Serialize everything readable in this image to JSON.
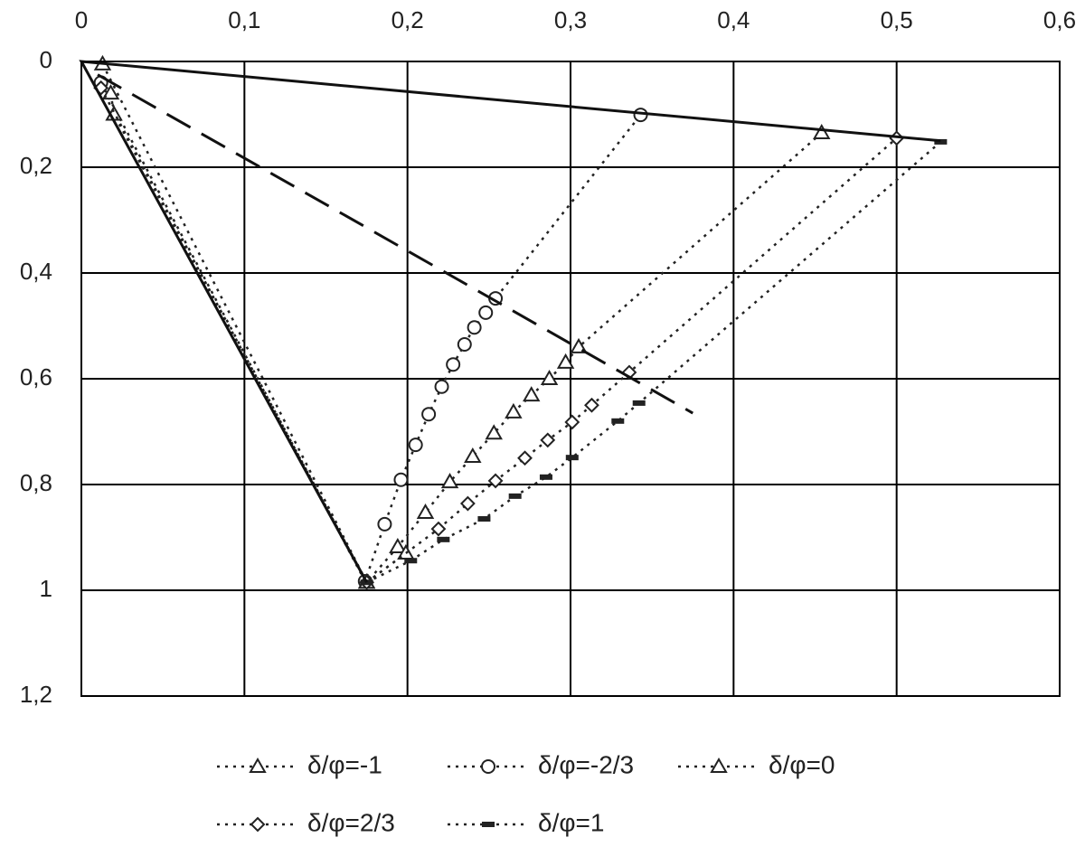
{
  "chart_data": {
    "type": "scatter",
    "xlim": [
      0,
      0.6
    ],
    "ylim": [
      0,
      1.2
    ],
    "y_inverted": true,
    "x_axis_position": "top",
    "grid": true,
    "legend": "bottom",
    "xticks": [
      0,
      {
        "value": 0.1,
        "label": "0,1"
      },
      {
        "value": 0.2,
        "label": "0,2"
      },
      {
        "value": 0.3,
        "label": "0,3"
      },
      {
        "value": 0.4,
        "label": "0,4"
      },
      {
        "value": 0.5,
        "label": "0,5"
      },
      {
        "value": 0.6,
        "label": "0,6"
      }
    ],
    "yticks": [
      0,
      {
        "value": 0.2,
        "label": "0,2"
      },
      {
        "value": 0.4,
        "label": "0,4"
      },
      {
        "value": 0.6,
        "label": "0,6"
      },
      {
        "value": 0.8,
        "label": "0,8"
      },
      1,
      {
        "value": 1.2,
        "label": "1,2"
      }
    ],
    "series": [
      {
        "name": "δ/φ=-1",
        "color": "#222222",
        "marker": "triangle",
        "line": "dotted",
        "x": [
          0.013,
          0.175,
          0.194,
          0.211,
          0.226,
          0.24,
          0.253,
          0.265,
          0.276,
          0.287,
          0.297,
          0.305,
          0.454
        ],
        "values": [
          0.005,
          0.985,
          0.918,
          0.853,
          0.795,
          0.747,
          0.703,
          0.663,
          0.631,
          0.6,
          0.569,
          0.54,
          0.135
        ]
      },
      {
        "name": "δ/φ=-2/3",
        "color": "#222222",
        "marker": "circle",
        "line": "dotted",
        "x": [
          0.012,
          0.174,
          0.186,
          0.196,
          0.205,
          0.213,
          0.221,
          0.228,
          0.235,
          0.241,
          0.248,
          0.254,
          0.343
        ],
        "values": [
          0.04,
          0.983,
          0.875,
          0.791,
          0.725,
          0.667,
          0.615,
          0.573,
          0.535,
          0.503,
          0.475,
          0.448,
          0.101
        ]
      },
      {
        "name": "δ/φ=0",
        "color": "#222222",
        "marker": "triangle",
        "line": "dotted",
        "x": [
          0.018,
          0.02,
          0.175,
          0.199
        ],
        "values": [
          0.06,
          0.1,
          0.985,
          0.93
        ]
      },
      {
        "name": "δ/φ=2/3",
        "color": "#222222",
        "marker": "diamond",
        "line": "dotted",
        "x": [
          0.012,
          0.175,
          0.219,
          0.237,
          0.254,
          0.272,
          0.286,
          0.301,
          0.313,
          0.336,
          0.5
        ],
        "values": [
          0.05,
          0.985,
          0.884,
          0.836,
          0.793,
          0.75,
          0.716,
          0.682,
          0.65,
          0.588,
          0.145
        ]
      },
      {
        "name": "δ/φ=1",
        "color": "#222222",
        "marker": "dash",
        "line": "dotted",
        "x": [
          0.175,
          0.202,
          0.222,
          0.247,
          0.266,
          0.285,
          0.301,
          0.329,
          0.342,
          0.527
        ],
        "values": [
          0.985,
          0.944,
          0.904,
          0.865,
          0.822,
          0.786,
          0.749,
          0.68,
          0.646,
          0.152
        ]
      },
      {
        "color": "#111111",
        "line": "solid",
        "x": [
          0.527,
          0,
          0.175
        ],
        "values": [
          0.15,
          0,
          0.985
        ]
      },
      {
        "color": "#111111",
        "line": "dashed",
        "x": [
          0.01,
          0.375
        ],
        "values": [
          0.025,
          0.665
        ]
      }
    ]
  }
}
